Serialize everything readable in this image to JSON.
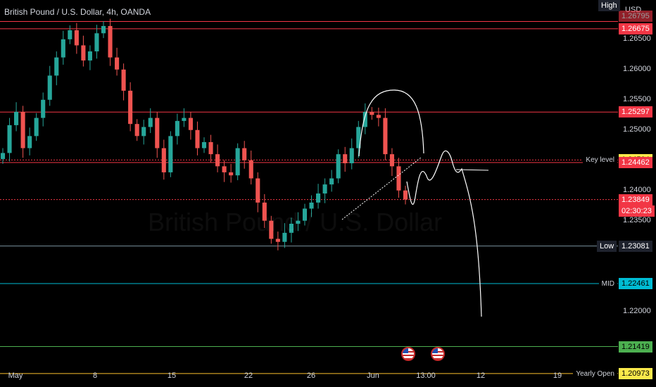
{
  "header": {
    "title": "British Pound / U.S. Dollar, 4h, OANDA",
    "currency": "USD",
    "watermark": "British Pound / U.S. Dollar"
  },
  "colors": {
    "bg": "#000000",
    "up": "#26a69a",
    "down": "#ef5350",
    "red_line": "#f23645",
    "cyan_line": "#00bcd4",
    "green_line": "#4caf50",
    "yellow_line": "#fbc02d"
  },
  "price_tags": [
    {
      "name": "high",
      "label": "High",
      "value": "1.26795"
    },
    {
      "name": "level-1",
      "value": "1.26675"
    },
    {
      "name": "level-2",
      "value": "1.25297"
    },
    {
      "name": "key-level",
      "label": "Key level",
      "value": "1.24504"
    },
    {
      "name": "level-3",
      "value": "1.24462"
    },
    {
      "name": "last-price",
      "value": "1.23849",
      "countdown": "02:30:23"
    },
    {
      "name": "low",
      "label": "Low",
      "value": "1.23081"
    },
    {
      "name": "mid",
      "label": "MID",
      "value": "1.22461"
    },
    {
      "name": "level-4",
      "value": "1.21419"
    },
    {
      "name": "yearly-open",
      "label": "Yearly Open",
      "value": "1.20973"
    }
  ],
  "events": [
    "us-flag-icon",
    "us-flag-icon"
  ],
  "chart_data": {
    "type": "line",
    "series": [
      {
        "values": [
          1.2462,
          1.2508,
          1.253,
          1.247,
          1.249,
          1.252,
          1.255,
          1.259,
          1.262,
          1.265,
          1.2665,
          1.264,
          1.2615,
          1.263,
          1.266,
          1.2672,
          1.262,
          1.26,
          1.2565,
          1.251,
          1.249,
          1.2505,
          1.252,
          1.247,
          1.243,
          1.249,
          1.2515,
          1.252,
          1.25,
          1.247,
          1.248,
          1.246,
          1.244,
          1.243,
          1.2425,
          1.247,
          1.245,
          1.242,
          1.238,
          1.235,
          1.232,
          1.2315,
          1.233,
          1.2345,
          1.235,
          1.237,
          1.238,
          1.2395,
          1.241,
          1.242,
          1.246,
          1.2445,
          1.247,
          1.2505,
          1.253,
          1.2525,
          1.252,
          1.246,
          1.244,
          1.24,
          1.2385
        ]
      }
    ],
    "x_ticks": [
      "May",
      "8",
      "15",
      "22",
      "26",
      "Jun",
      "13:00",
      "12",
      "19"
    ],
    "y_ticks": [
      "1.26500",
      "1.26000",
      "1.25500",
      "1.25000",
      "1.24000",
      "1.23500",
      "1.22000"
    ],
    "horizontal_levels": [
      {
        "value": 1.26795,
        "color": "#f23645"
      },
      {
        "value": 1.26675,
        "color": "#f23645"
      },
      {
        "value": 1.25297,
        "color": "#f23645"
      },
      {
        "value": 1.24504,
        "color": "#f23645",
        "dashed": true
      },
      {
        "value": 1.24462,
        "color": "#f23645"
      },
      {
        "value": 1.23849,
        "color": "#f23645",
        "dashed": true
      },
      {
        "value": 1.23081,
        "color": "#78909c"
      },
      {
        "value": 1.22461,
        "color": "#00bcd4"
      },
      {
        "value": 1.21419,
        "color": "#4caf50"
      },
      {
        "value": 1.20973,
        "color": "#fbc02d"
      }
    ],
    "ylim": [
      1.2075,
      1.2715
    ],
    "grid": false
  }
}
